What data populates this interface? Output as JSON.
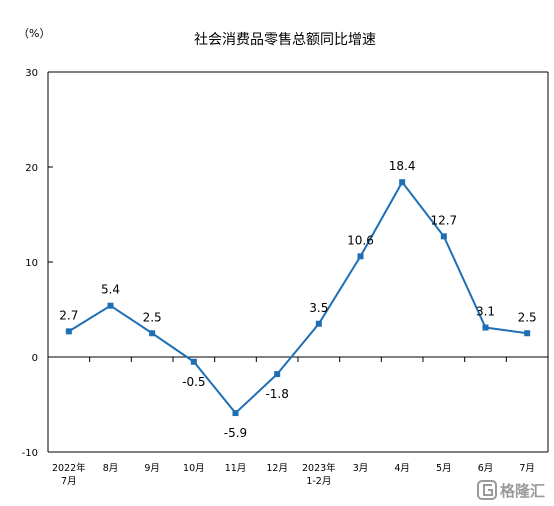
{
  "chart_data": {
    "type": "line",
    "title": "社会消费品零售总额同比增速",
    "unit": "（%）",
    "xlabel": "",
    "ylabel": "",
    "ylim": [
      -10,
      30
    ],
    "yticks": [
      -10,
      0,
      10,
      20,
      30
    ],
    "grid": false,
    "categories": [
      [
        "2022年",
        "7月"
      ],
      [
        "8月"
      ],
      [
        "9月"
      ],
      [
        "10月"
      ],
      [
        "11月"
      ],
      [
        "12月"
      ],
      [
        "2023年",
        "1-2月"
      ],
      [
        "3月"
      ],
      [
        "4月"
      ],
      [
        "5月"
      ],
      [
        "6月"
      ],
      [
        "7月"
      ]
    ],
    "series": [
      {
        "values": [
          2.7,
          5.4,
          2.5,
          -0.5,
          -5.9,
          -1.8,
          3.5,
          10.6,
          18.4,
          12.7,
          3.1,
          2.5
        ],
        "labels": [
          "2.7",
          "5.4",
          "2.5",
          "-0.5",
          "-5.9",
          "-1.8",
          "3.5",
          "10.6",
          "18.4",
          "12.7",
          "3.1",
          "2.5"
        ],
        "label_position": [
          "above",
          "above",
          "above",
          "below",
          "below",
          "below",
          "above",
          "above",
          "above",
          "above",
          "above",
          "above"
        ],
        "color": "#1f6fb5"
      }
    ]
  },
  "watermark": {
    "text": "格隆汇",
    "icon": "gelonghui-logo-icon"
  }
}
